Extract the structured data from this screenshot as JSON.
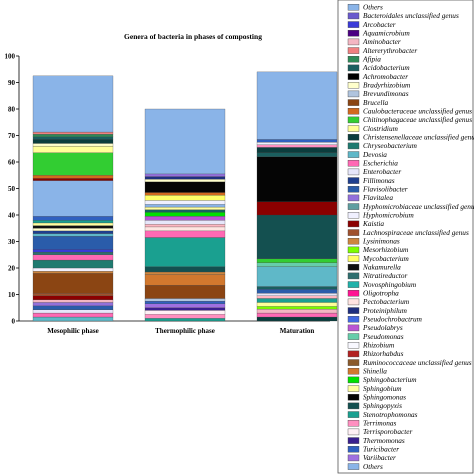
{
  "chart_data": {
    "type": "bar",
    "stacked": true,
    "title": "Genera of bacteria in phases of composting",
    "xlabel": "",
    "ylabel": "",
    "ylim": [
      0,
      100
    ],
    "yticks": [
      0,
      10,
      20,
      30,
      40,
      50,
      60,
      70,
      80,
      90,
      100
    ],
    "grid": false,
    "legend_position": "right",
    "categories": [
      "Mesophilic phase",
      "Thermophilic phase",
      "Maturation"
    ],
    "series": [
      {
        "name": "Others",
        "color": "#8ab4e8",
        "values": [
          0,
          0,
          0
        ]
      },
      {
        "name": "Bacteroidales unclassified genus",
        "color": "#6a5acd",
        "values": [
          0,
          0,
          0
        ]
      },
      {
        "name": "Arcobacter",
        "color": "#3b3bd9",
        "values": [
          0,
          0,
          0
        ]
      },
      {
        "name": "Aquamicrobium",
        "color": "#4b0082",
        "values": [
          0,
          0,
          0
        ]
      },
      {
        "name": "Aminobacter",
        "color": "#f4b6c2",
        "values": [
          0,
          0,
          0
        ]
      },
      {
        "name": "Altererythrobacter",
        "color": "#f08080",
        "values": [
          0,
          0,
          0
        ]
      },
      {
        "name": "Afipia",
        "color": "#2e8b57",
        "values": [
          0,
          0,
          0
        ]
      },
      {
        "name": "Acidobacterium",
        "color": "#1a5f5f",
        "values": [
          0,
          0,
          0
        ]
      },
      {
        "name": "Achromobacter",
        "color": "#000000",
        "values": [
          0,
          0,
          0
        ]
      },
      {
        "name": "Bradyrhizobium",
        "color": "#ffffcc",
        "values": [
          0,
          0,
          0
        ]
      },
      {
        "name": "Brevundimonas",
        "color": "#b0c4de",
        "values": [
          0,
          0,
          0
        ]
      },
      {
        "name": "Brucella",
        "color": "#8b4513",
        "values": [
          0,
          0,
          0
        ]
      },
      {
        "name": "Caulobacteraceae unclassified genus",
        "color": "#d2691e",
        "values": [
          0,
          0,
          0
        ]
      },
      {
        "name": "Chitinophagaceae unclassified genus",
        "color": "#32cd32",
        "values": [
          0,
          0,
          0
        ]
      },
      {
        "name": "Clostridium",
        "color": "#ffff99",
        "values": [
          0,
          0,
          0
        ]
      },
      {
        "name": "Christensenellaceae unclassified genus",
        "color": "#0b3d3d",
        "values": [
          0,
          0,
          0
        ]
      },
      {
        "name": "Chryseobacterium",
        "color": "#1f7a70",
        "values": [
          0,
          0,
          0
        ]
      },
      {
        "name": "Devosia",
        "color": "#5fb8c8",
        "values": [
          0,
          0,
          0
        ]
      },
      {
        "name": "Escherichia",
        "color": "#ff69b4",
        "values": [
          0,
          0,
          0
        ]
      },
      {
        "name": "Enterobacter",
        "color": "#e6e6fa",
        "values": [
          0,
          0,
          0
        ]
      },
      {
        "name": "Fillimonas",
        "color": "#1f3f8f",
        "values": [
          0,
          0,
          0
        ]
      },
      {
        "name": "Flavisolibacter",
        "color": "#2a5caa",
        "values": [
          0,
          0,
          0
        ]
      },
      {
        "name": "Flavitalea",
        "color": "#9370db",
        "values": [
          0,
          0,
          0
        ]
      },
      {
        "name": "Hyphomicrobiaceae unclassified genus",
        "color": "#5f9ea0",
        "values": [
          0,
          0,
          0
        ]
      },
      {
        "name": "Hyphomicrobium",
        "color": "#f0f0ff",
        "values": [
          0,
          0,
          0
        ]
      },
      {
        "name": "Kaistia",
        "color": "#8b0000",
        "values": [
          0,
          0,
          0
        ]
      },
      {
        "name": "Lachnospiraceae unclassified genus",
        "color": "#a0522d",
        "values": [
          0,
          0,
          0
        ]
      },
      {
        "name": "Lysinimonas",
        "color": "#cd853f",
        "values": [
          0,
          0,
          0
        ]
      },
      {
        "name": "Mesorhizobium",
        "color": "#7cfc00",
        "values": [
          0,
          0,
          0
        ]
      },
      {
        "name": "Mycobacterium",
        "color": "#ffff66",
        "values": [
          0,
          0,
          0
        ]
      },
      {
        "name": "Nakamurella",
        "color": "#111111",
        "values": [
          0,
          0,
          0
        ]
      },
      {
        "name": "Nitratireductor",
        "color": "#2f6f6f",
        "values": [
          0,
          0,
          0
        ]
      },
      {
        "name": "Novosphingobium",
        "color": "#20b2aa",
        "values": [
          0,
          0,
          0
        ]
      },
      {
        "name": "Oligotropha",
        "color": "#ff1493",
        "values": [
          0,
          0,
          0
        ]
      },
      {
        "name": "Pectobacterium",
        "color": "#ffe4e1",
        "values": [
          0,
          0,
          0
        ]
      },
      {
        "name": "Proteiniphilum",
        "color": "#1e2f7f",
        "values": [
          0,
          0,
          0
        ]
      },
      {
        "name": "Pseudochrobactrum",
        "color": "#4169e1",
        "values": [
          0,
          0,
          0
        ]
      },
      {
        "name": "Pseudolabrys",
        "color": "#ba55d3",
        "values": [
          0,
          0,
          0
        ]
      },
      {
        "name": "Pseudomonas",
        "color": "#66cdaa",
        "values": [
          0,
          0,
          0
        ]
      },
      {
        "name": "Rhizobium",
        "color": "#f8f8ff",
        "values": [
          0,
          0,
          0
        ]
      },
      {
        "name": "Rhizorhabdus",
        "color": "#b22222",
        "values": [
          0,
          0,
          0
        ]
      },
      {
        "name": "Ruminococcaceae unclassified genus",
        "color": "#8b5a2b",
        "values": [
          0,
          0,
          0
        ]
      },
      {
        "name": "Shinella",
        "color": "#d2782e",
        "values": [
          0,
          0,
          0
        ]
      },
      {
        "name": "Sphingobacterium",
        "color": "#00e000",
        "values": [
          0,
          0,
          0
        ]
      },
      {
        "name": "Sphingobium",
        "color": "#ffffa0",
        "values": [
          0,
          0,
          0
        ]
      },
      {
        "name": "Sphingomonas",
        "color": "#050505",
        "values": [
          0,
          0,
          0
        ]
      },
      {
        "name": "Sphingopyxis",
        "color": "#145050",
        "values": [
          0,
          0,
          0
        ]
      },
      {
        "name": "Stenotrophomonas",
        "color": "#1aa090",
        "values": [
          0,
          0,
          0
        ]
      },
      {
        "name": "Terrimonas",
        "color": "#ff8fc0",
        "values": [
          0,
          0,
          0
        ]
      },
      {
        "name": "Terrisporobacter",
        "color": "#fff0f5",
        "values": [
          0,
          0,
          0
        ]
      },
      {
        "name": "Thermomonas",
        "color": "#3a1f8f",
        "values": [
          0,
          0,
          0
        ]
      },
      {
        "name": "Turicibacter",
        "color": "#3060c0",
        "values": [
          0,
          0,
          0
        ]
      },
      {
        "name": "Variibacter",
        "color": "#a070e0",
        "values": [
          0,
          0,
          0
        ]
      },
      {
        "name": "Others",
        "color": "#8ab4e8",
        "values": [
          0,
          0,
          0
        ]
      }
    ],
    "stacks": [
      {
        "category": "Mesophilic phase",
        "segments": [
          {
            "color": "#5fb8c8",
            "value": 1.5
          },
          {
            "color": "#ff69b4",
            "value": 1.5
          },
          {
            "color": "#e6e6fa",
            "value": 1.2
          },
          {
            "color": "#2a5caa",
            "value": 1.5
          },
          {
            "color": "#9370db",
            "value": 1.3
          },
          {
            "color": "#f4b6c2",
            "value": 1.0
          },
          {
            "color": "#8b0000",
            "value": 1.5
          },
          {
            "color": "#a0522d",
            "value": 1.0
          },
          {
            "color": "#8b4513",
            "value": 7.5
          },
          {
            "color": "#cd853f",
            "value": 0.8
          },
          {
            "color": "#f0f0ff",
            "value": 1.2
          },
          {
            "color": "#1f7a70",
            "value": 3.0
          },
          {
            "color": "#ff69b4",
            "value": 2.0
          },
          {
            "color": "#2f6f6f",
            "value": 1.0
          },
          {
            "color": "#3b3bd9",
            "value": 1.0
          },
          {
            "color": "#2a5caa",
            "value": 5.0
          },
          {
            "color": "#5fb8c8",
            "value": 1.0
          },
          {
            "color": "#1f3f8f",
            "value": 1.0
          },
          {
            "color": "#ffffcc",
            "value": 1.0
          },
          {
            "color": "#111111",
            "value": 1.0
          },
          {
            "color": "#ffffa0",
            "value": 1.0
          },
          {
            "color": "#1aa090",
            "value": 1.0
          },
          {
            "color": "#3060c0",
            "value": 1.5
          },
          {
            "color": "#8ab4e8",
            "value": 13.5
          },
          {
            "color": "#8b0000",
            "value": 0.8
          },
          {
            "color": "#d2691e",
            "value": 1.2
          },
          {
            "color": "#32cd32",
            "value": 8.5
          },
          {
            "color": "#ffff99",
            "value": 2.5
          },
          {
            "color": "#ffffcc",
            "value": 1.0
          },
          {
            "color": "#0b3d3d",
            "value": 1.5
          },
          {
            "color": "#1a5f5f",
            "value": 1.0
          },
          {
            "color": "#2e8b57",
            "value": 1.0
          },
          {
            "color": "#f08080",
            "value": 0.8
          },
          {
            "color": "#8ab4e8",
            "value": 21.2
          }
        ]
      },
      {
        "category": "Thermophilic phase",
        "segments": [
          {
            "color": "#1aa090",
            "value": 1.0
          },
          {
            "color": "#ff8fc0",
            "value": 1.5
          },
          {
            "color": "#fff0f5",
            "value": 1.5
          },
          {
            "color": "#3a1f8f",
            "value": 1.0
          },
          {
            "color": "#a070e0",
            "value": 1.5
          },
          {
            "color": "#3060c0",
            "value": 1.0
          },
          {
            "color": "#b0c4de",
            "value": 1.0
          },
          {
            "color": "#8b4513",
            "value": 5.0
          },
          {
            "color": "#d2782e",
            "value": 4.0
          },
          {
            "color": "#cd853f",
            "value": 1.0
          },
          {
            "color": "#145050",
            "value": 2.0
          },
          {
            "color": "#1aa090",
            "value": 11.0
          },
          {
            "color": "#ff69b4",
            "value": 2.5
          },
          {
            "color": "#ffe4e1",
            "value": 1.5
          },
          {
            "color": "#ffb6c1",
            "value": 1.0
          },
          {
            "color": "#e6e6fa",
            "value": 1.5
          },
          {
            "color": "#ba55d3",
            "value": 1.5
          },
          {
            "color": "#00e000",
            "value": 1.5
          },
          {
            "color": "#1a5f5f",
            "value": 1.0
          },
          {
            "color": "#ffffa0",
            "value": 1.0
          },
          {
            "color": "#8ab4e8",
            "value": 1.0
          },
          {
            "color": "#f0f0ff",
            "value": 1.5
          },
          {
            "color": "#ffff66",
            "value": 2.0
          },
          {
            "color": "#d2691e",
            "value": 1.0
          },
          {
            "color": "#050505",
            "value": 4.0
          },
          {
            "color": "#ffffcc",
            "value": 1.0
          },
          {
            "color": "#1e2f7f",
            "value": 1.0
          },
          {
            "color": "#9370db",
            "value": 1.0
          },
          {
            "color": "#8ab4e8",
            "value": 24.5
          }
        ]
      },
      {
        "category": "Maturation",
        "segments": [
          {
            "color": "#0b3d3d",
            "value": 1.5
          },
          {
            "color": "#ff69b4",
            "value": 1.5
          },
          {
            "color": "#f4b6c2",
            "value": 1.5
          },
          {
            "color": "#7cfc00",
            "value": 1.0
          },
          {
            "color": "#ffff99",
            "value": 1.5
          },
          {
            "color": "#1aa090",
            "value": 1.5
          },
          {
            "color": "#ffb6c1",
            "value": 1.0
          },
          {
            "color": "#e6e6fa",
            "value": 1.0
          },
          {
            "color": "#2a5caa",
            "value": 1.5
          },
          {
            "color": "#1a5f5f",
            "value": 1.0
          },
          {
            "color": "#5fb8c8",
            "value": 7.5
          },
          {
            "color": "#66cdaa",
            "value": 1.5
          },
          {
            "color": "#32cd32",
            "value": 1.5
          },
          {
            "color": "#145050",
            "value": 16.5
          },
          {
            "color": "#8b0000",
            "value": 5.0
          },
          {
            "color": "#050505",
            "value": 17.0
          },
          {
            "color": "#1a5f5f",
            "value": 1.5
          },
          {
            "color": "#0b3d3d",
            "value": 2.0
          },
          {
            "color": "#ff8fc0",
            "value": 1.0
          },
          {
            "color": "#f0f0ff",
            "value": 1.0
          },
          {
            "color": "#3060c0",
            "value": 1.0
          },
          {
            "color": "#8ab4e8",
            "value": 25.5
          }
        ]
      }
    ]
  }
}
